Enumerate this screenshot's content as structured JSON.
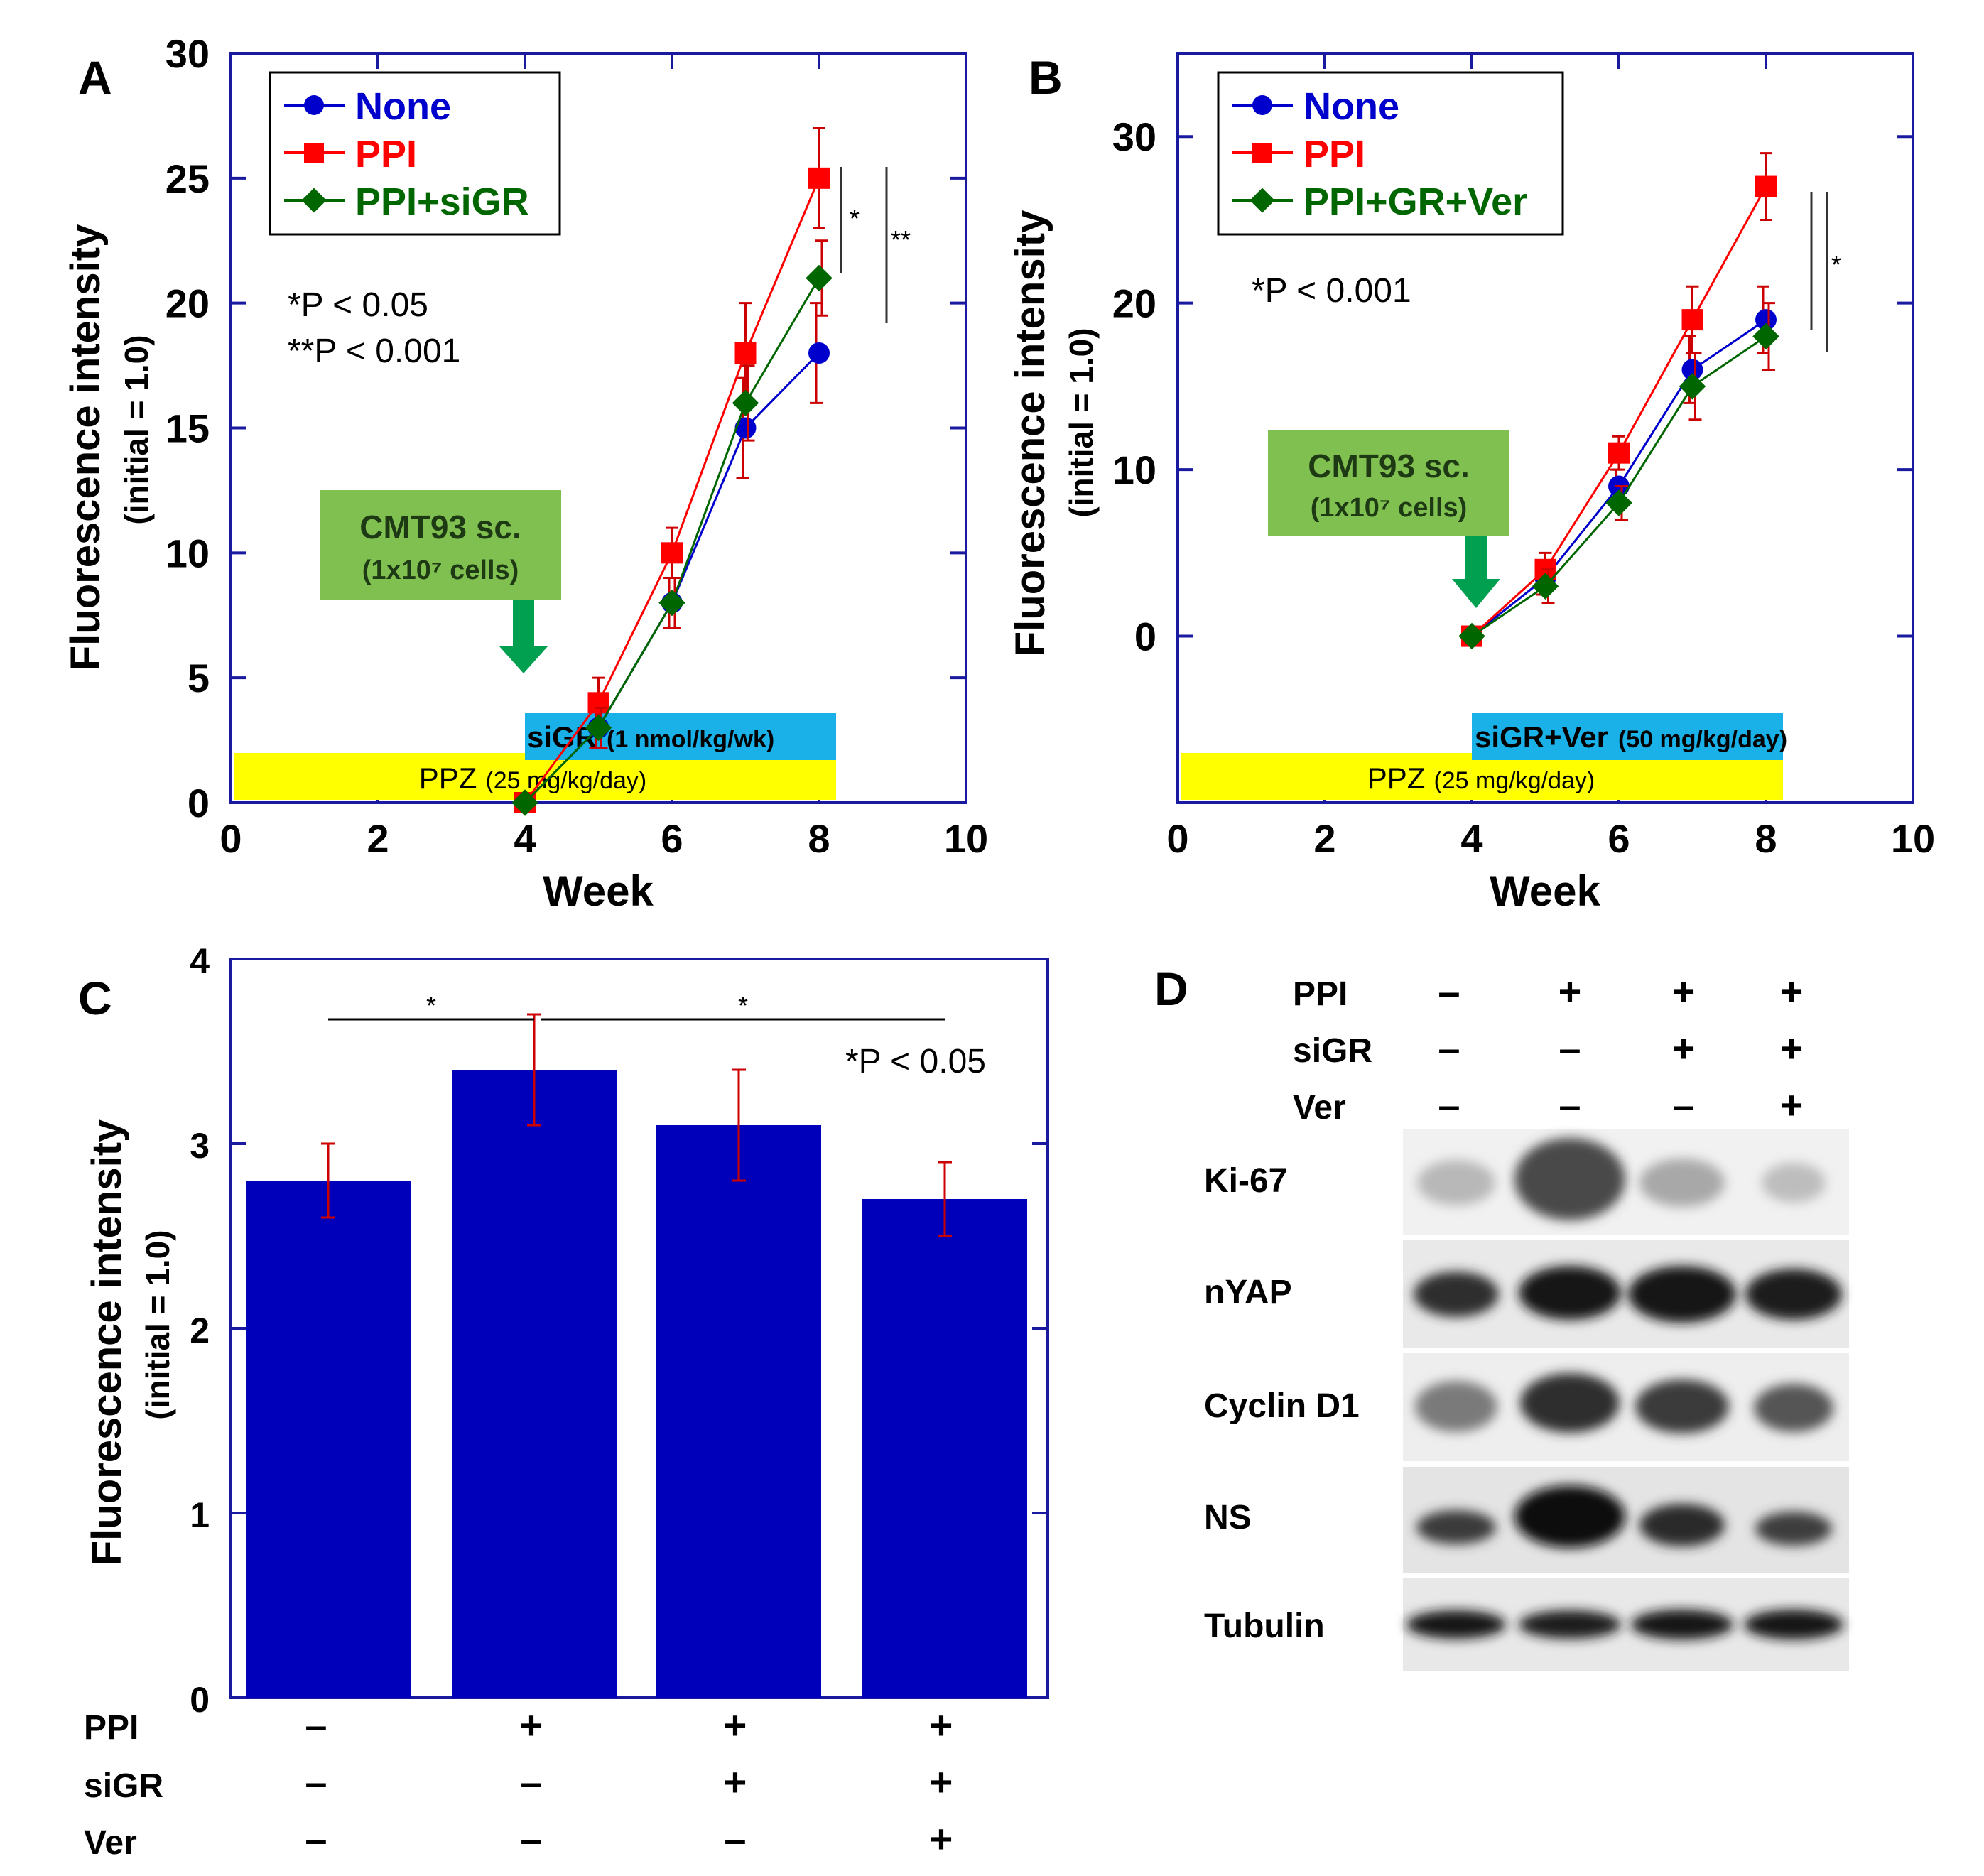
{
  "figure": {
    "panel_a": {
      "label": "A",
      "ylabel": "Fluorescence  intensity",
      "ylabel_sub": "(initial = 1.0)",
      "xlabel": "Week",
      "legend": [
        "None",
        "PPI",
        "PPI+siGR"
      ],
      "pvalues": [
        "*P < 0.05",
        "**P < 0.001"
      ],
      "sig_marks": [
        "*",
        "**"
      ],
      "callout_line1": "CMT93 sc.",
      "callout_line2": "(1x10⁷ cells)",
      "treatment_bar_main": "siGR",
      "treatment_bar_dose": "(1 nmol/kg/wk)",
      "ppz_main": "PPZ",
      "ppz_dose": "(25 mg/kg/day)"
    },
    "panel_b": {
      "label": "B",
      "ylabel": "Fluorescence  intensity",
      "ylabel_sub": "(initial = 1.0)",
      "xlabel": "Week",
      "legend": [
        "None",
        "PPI",
        "PPI+GR+Ver"
      ],
      "pvalues": [
        "*P < 0.001"
      ],
      "sig_marks": [
        "*"
      ],
      "callout_line1": "CMT93 sc.",
      "callout_line2": "(1x10⁷ cells)",
      "treatment_bar_main": "siGR+Ver",
      "treatment_bar_dose": "(50 mg/kg/day)",
      "ppz_main": "PPZ",
      "ppz_dose": "(25 mg/kg/day)"
    },
    "panel_c": {
      "label": "C",
      "ylabel": "Fluorescence  intensity",
      "ylabel_sub": "(initial = 1.0)",
      "pvalue": "*P < 0.05",
      "sig_marks": [
        "*",
        "*"
      ],
      "row_labels": [
        "PPI",
        "siGR",
        "Ver"
      ],
      "conditions": [
        [
          "–",
          "–",
          "–"
        ],
        [
          "+",
          "–",
          "–"
        ],
        [
          "+",
          "+",
          "–"
        ],
        [
          "+",
          "+",
          "+"
        ]
      ]
    },
    "panel_d": {
      "label": "D",
      "row_labels": [
        "PPI",
        "siGR",
        "Ver"
      ],
      "conditions": [
        [
          "–",
          "–",
          "–"
        ],
        [
          "+",
          "–",
          "–"
        ],
        [
          "+",
          "+",
          "–"
        ],
        [
          "+",
          "+",
          "+"
        ]
      ],
      "blot_labels": [
        "Ki-67",
        "nYAP",
        "Cyclin D1",
        "NS",
        "Tubulin"
      ]
    },
    "colors": {
      "none": "#0000cc",
      "ppi": "#ff0000",
      "ppi_sigr": "#006600",
      "bar": "#0000bb",
      "error": "#cc0000",
      "callout": "#80c050",
      "arrow": "#00a050",
      "sigr_bar": "#1ab0e8",
      "ppz_bar": "#ffff00"
    }
  },
  "chart_data": [
    {
      "panel": "A",
      "type": "line",
      "xlabel": "Week",
      "ylabel": "Fluorescence  intensity (initial = 1.0)",
      "xlim": [
        0,
        10
      ],
      "ylim": [
        0,
        30
      ],
      "xticks": [
        0,
        2,
        4,
        6,
        8,
        10
      ],
      "yticks": [
        0,
        5,
        10,
        15,
        20,
        25,
        30
      ],
      "x": [
        4,
        5,
        6,
        7,
        8
      ],
      "series": [
        {
          "name": "None",
          "color": "#0000cc",
          "marker": "circle",
          "values": [
            0,
            3,
            8,
            15,
            18
          ],
          "errors": [
            0,
            0.8,
            1.0,
            2.0,
            2.0
          ]
        },
        {
          "name": "PPI",
          "color": "#ff0000",
          "marker": "square",
          "values": [
            0,
            4,
            10,
            18,
            25
          ],
          "errors": [
            0,
            1.0,
            1.0,
            2.0,
            2.0
          ]
        },
        {
          "name": "PPI+siGR",
          "color": "#006600",
          "marker": "diamond",
          "values": [
            0,
            3,
            8,
            16,
            21
          ],
          "errors": [
            0,
            0.8,
            1.0,
            1.5,
            1.5
          ]
        }
      ]
    },
    {
      "panel": "B",
      "type": "line",
      "xlabel": "Week",
      "ylabel": "Fluorescence  intensity (initial = 1.0)",
      "xlim": [
        0,
        10
      ],
      "ylim": [
        -10,
        35
      ],
      "xticks": [
        0,
        2,
        4,
        6,
        8,
        10
      ],
      "yticks": [
        0,
        10,
        20,
        30
      ],
      "x": [
        4,
        5,
        6,
        7,
        8
      ],
      "series": [
        {
          "name": "None",
          "color": "#0000cc",
          "marker": "circle",
          "values": [
            0,
            3.5,
            9,
            16,
            19
          ],
          "errors": [
            0,
            1.0,
            1.0,
            2.0,
            2.0
          ]
        },
        {
          "name": "PPI",
          "color": "#ff0000",
          "marker": "square",
          "values": [
            0,
            4,
            11,
            19,
            27
          ],
          "errors": [
            0,
            1.0,
            1.0,
            2.0,
            2.0
          ]
        },
        {
          "name": "PPI+GR+Ver",
          "color": "#006600",
          "marker": "diamond",
          "values": [
            0,
            3,
            8,
            15,
            18
          ],
          "errors": [
            0,
            1.0,
            1.0,
            2.0,
            2.0
          ]
        }
      ]
    },
    {
      "panel": "C",
      "type": "bar",
      "ylabel": "Fluorescence  intensity (initial = 1.0)",
      "ylim": [
        0,
        4
      ],
      "yticks": [
        0,
        1,
        2,
        3,
        4
      ],
      "values": [
        2.8,
        3.4,
        3.1,
        2.7
      ],
      "errors": [
        0.2,
        0.3,
        0.3,
        0.2
      ]
    }
  ]
}
